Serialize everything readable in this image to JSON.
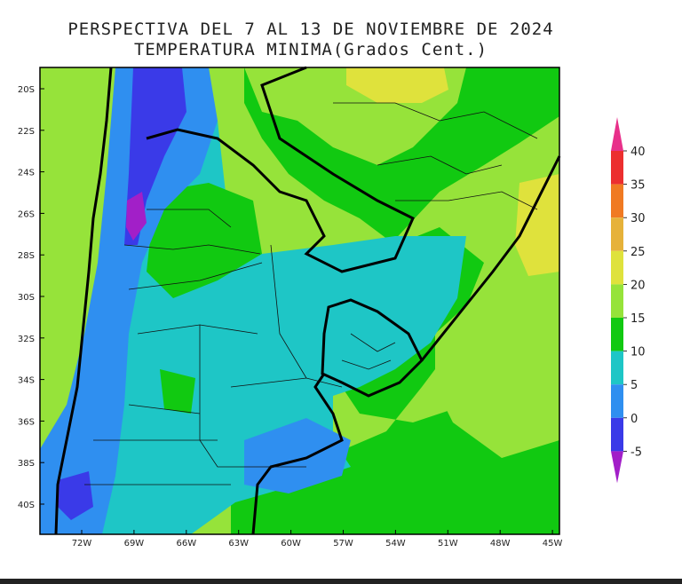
{
  "map": {
    "title_line1": "PERSPECTIVA DEL 7 AL 13 DE NOVIEMBRE DE 2024",
    "title_line2": "TEMPERATURA MINIMA(Grados Cent.)",
    "lat_labels": [
      "20S",
      "22S",
      "24S",
      "26S",
      "28S",
      "30S",
      "32S",
      "34S",
      "36S",
      "38S",
      "40S"
    ],
    "lon_labels": [
      "72W",
      "69W",
      "66W",
      "63W",
      "60W",
      "57W",
      "54W",
      "51W",
      "48W",
      "45W"
    ],
    "lon_range": [
      -73.5,
      -44.5
    ],
    "lat_range": [
      -41.5,
      -19.0
    ]
  },
  "legend": {
    "ticks": [
      "40",
      "35",
      "30",
      "25",
      "20",
      "15",
      "10",
      "5",
      "0",
      "-5"
    ],
    "bins": [
      {
        "from": -5,
        "to": 0,
        "color": "#3a3ae8"
      },
      {
        "from": 0,
        "to": 5,
        "color": "#2f8ff0"
      },
      {
        "from": 5,
        "to": 10,
        "color": "#1ec6c6"
      },
      {
        "from": 10,
        "to": 15,
        "color": "#11c911"
      },
      {
        "from": 15,
        "to": 20,
        "color": "#96e33a"
      },
      {
        "from": 20,
        "to": 25,
        "color": "#dfe23c"
      },
      {
        "from": 25,
        "to": 30,
        "color": "#e6b23a"
      },
      {
        "from": 30,
        "to": 35,
        "color": "#f07a22"
      },
      {
        "from": 35,
        "to": 40,
        "color": "#ec2f2f"
      }
    ],
    "under_color": "#a21fc8",
    "over_color": "#e8308a"
  }
}
